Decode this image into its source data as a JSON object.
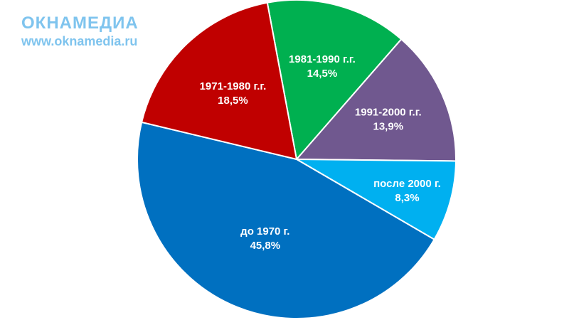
{
  "logo": {
    "brand": "ОКНАМЕДИА",
    "url": "www.oknamedia.ru"
  },
  "chart_data": {
    "type": "pie",
    "title": "",
    "start_angle_deg": -10.6,
    "direction": "clockwise",
    "slices": [
      {
        "label": "1981-1990 г.г.",
        "value": 14.5,
        "value_label": "14,5%",
        "color": "#00b050"
      },
      {
        "label": "1991-2000 г.г.",
        "value": 13.9,
        "value_label": "13,9%",
        "color": "#70588f"
      },
      {
        "label": "после 2000 г.",
        "value": 8.3,
        "value_label": "8,3%",
        "color": "#00b0f0"
      },
      {
        "label": "до 1970 г.",
        "value": 45.8,
        "value_label": "45,8%",
        "color": "#0070c0"
      },
      {
        "label": "1971-1980 г.г.",
        "value": 18.5,
        "value_label": "18,5%",
        "color": "#c00000"
      }
    ]
  }
}
